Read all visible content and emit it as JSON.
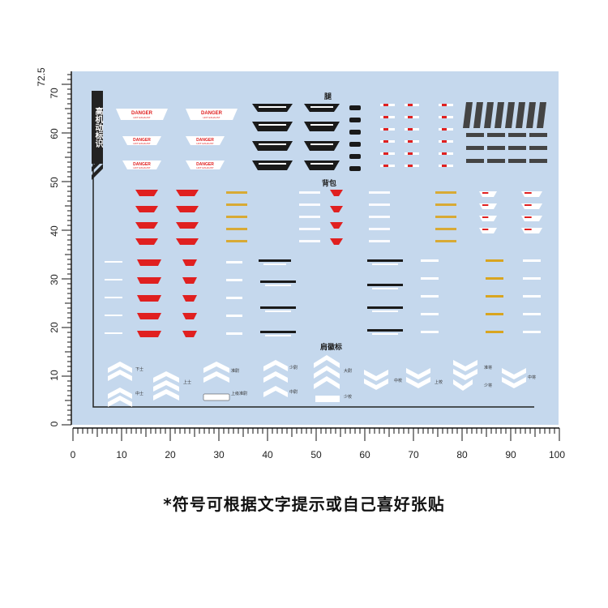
{
  "ruler_left": {
    "labels": [
      "72.5",
      "70",
      "60",
      "50",
      "40",
      "30",
      "20",
      "10",
      "0"
    ]
  },
  "ruler_bottom": {
    "labels": [
      "0",
      "10",
      "20",
      "30",
      "40",
      "50",
      "60",
      "70",
      "80",
      "90",
      "100"
    ]
  },
  "sections": {
    "vertical_title": "高机动标识",
    "legs": "腿",
    "backpack": "背包",
    "shoulder": "肩徽标"
  },
  "danger": {
    "title": "DANGER",
    "subtitle": "HOT EXHAUST"
  },
  "ranks": [
    "下士",
    "中士",
    "上士",
    "准尉",
    "上级准尉",
    "少尉",
    "中尉",
    "大尉",
    "少校",
    "中校",
    "上校",
    "准将",
    "少将",
    "中将"
  ],
  "caption": "*符号可根据文字提示或自己喜好张贴",
  "colors": {
    "sheet": "#c5d8ed",
    "danger_red": "#e02020",
    "decal_black": "#1a1a1a",
    "decal_gold": "#d9a520",
    "decal_white": "#ffffff"
  }
}
